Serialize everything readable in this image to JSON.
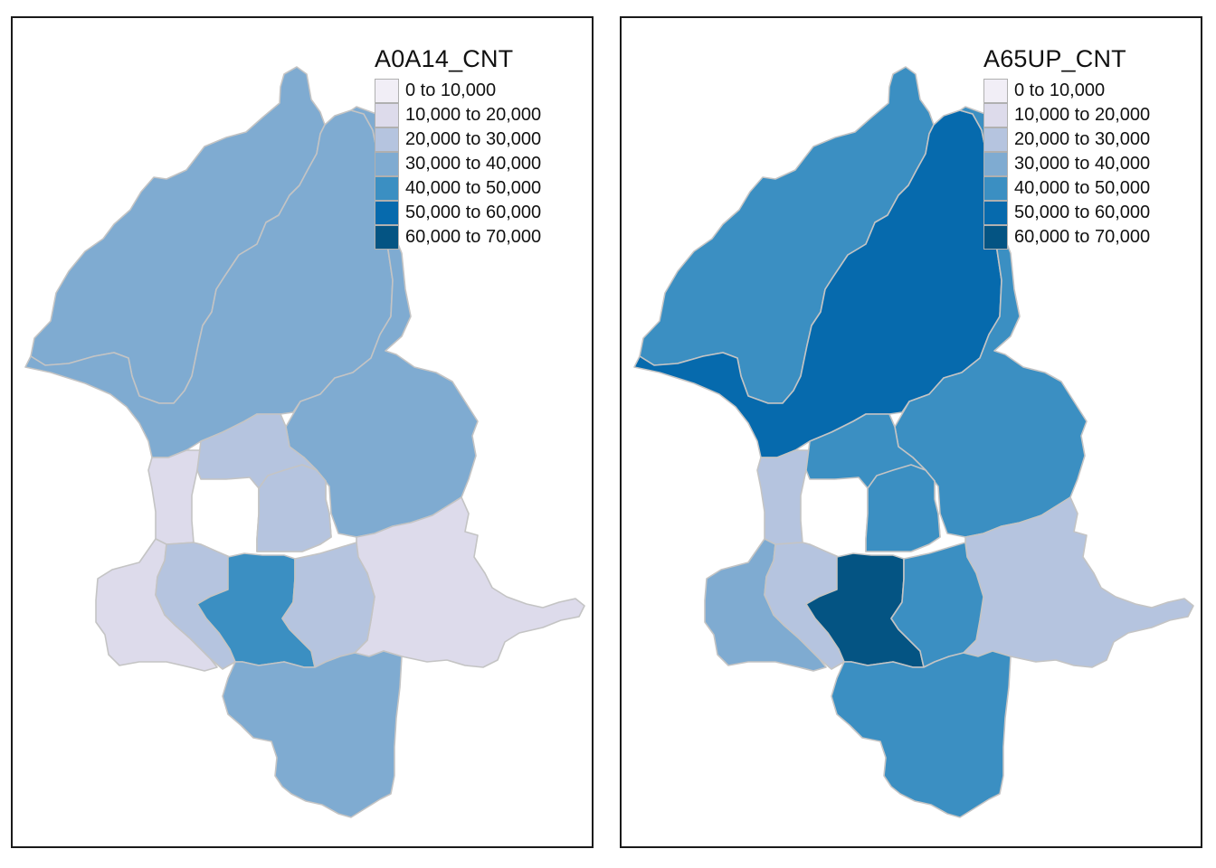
{
  "classes": [
    {
      "label": "0 to 10,000",
      "color": "#f1eef6"
    },
    {
      "label": "10,000 to 20,000",
      "color": "#dddbeb"
    },
    {
      "label": "20,000 to 30,000",
      "color": "#b5c4df"
    },
    {
      "label": "30,000 to 40,000",
      "color": "#7fabd1"
    },
    {
      "label": "40,000 to 50,000",
      "color": "#3b8fc2"
    },
    {
      "label": "50,000 to 60,000",
      "color": "#066aad"
    },
    {
      "label": "60,000 to 70,000",
      "color": "#045483"
    }
  ],
  "maps": [
    {
      "title": "A0A14_CNT",
      "district_classes": {
        "beitou": 3,
        "shilin": 3,
        "neihu": 3,
        "datong": 1,
        "zhongshan": 2,
        "songshan": 2,
        "nangang": 1,
        "wanhua": 1,
        "zhongzheng": 2,
        "daan": 4,
        "xinyi": 2,
        "wenshan": 3
      }
    },
    {
      "title": "A65UP_CNT",
      "district_classes": {
        "beitou": 4,
        "shilin": 5,
        "neihu": 4,
        "datong": 2,
        "zhongshan": 4,
        "songshan": 4,
        "nangang": 2,
        "wanhua": 3,
        "zhongzheng": 2,
        "daan": 6,
        "xinyi": 4,
        "wenshan": 4
      }
    }
  ]
}
